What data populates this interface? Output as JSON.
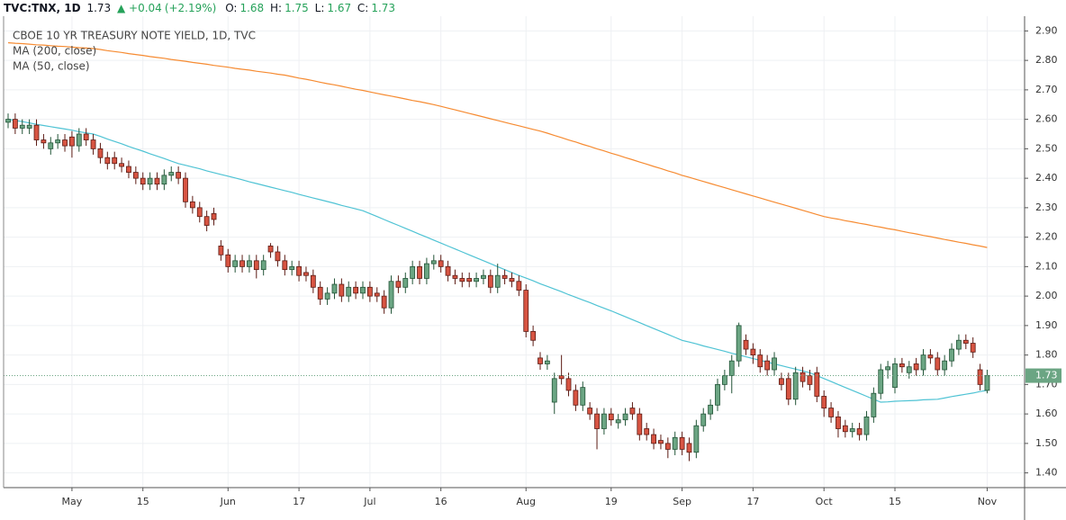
{
  "header": {
    "symbol": "TVC:TNX, 1D",
    "change": "+0.04",
    "change_pct": "(+2.19%)",
    "o": "O:",
    "h": "H:",
    "l": "L:",
    "c": "C:"
  },
  "chart_data": {
    "type": "candlestick",
    "title": "CBOE 10 YR TREASURY NOTE YIELD, 1D, TVC",
    "up_color": "#6ba583",
    "down_color": "#d75442",
    "up_border": "#225437",
    "down_border": "#5b1a13",
    "grid": true,
    "categories": [
      null,
      null,
      null,
      null,
      null,
      null,
      null,
      null,
      null,
      "May",
      null,
      null,
      null,
      null,
      null,
      null,
      null,
      null,
      null,
      "15",
      null,
      null,
      null,
      null,
      null,
      null,
      null,
      null,
      null,
      null,
      null,
      "Jun",
      null,
      null,
      null,
      null,
      null,
      null,
      null,
      null,
      null,
      "17",
      null,
      null,
      null,
      null,
      null,
      null,
      null,
      null,
      null,
      "Jul",
      null,
      null,
      null,
      null,
      null,
      null,
      null,
      null,
      null,
      "16",
      null,
      null,
      null,
      null,
      null,
      null,
      null,
      null,
      null,
      null,
      null,
      "Aug",
      null,
      null,
      null,
      null,
      null,
      null,
      null,
      null,
      null,
      null,
      null,
      "19",
      null,
      null,
      null,
      null,
      null,
      null,
      null,
      null,
      null,
      "Sep",
      null,
      null,
      null,
      null,
      null,
      null,
      null,
      null,
      null,
      "17",
      null,
      null,
      null,
      null,
      null,
      null,
      null,
      null,
      null,
      "Oct",
      null,
      null,
      null,
      null,
      null,
      null,
      null,
      null,
      null,
      "15",
      null,
      null,
      null,
      null,
      null,
      null,
      null,
      null,
      null,
      null,
      null,
      null,
      "Nov"
    ],
    "open": [
      2.59,
      2.6,
      2.57,
      2.57,
      2.58,
      2.53,
      2.5,
      2.52,
      2.53,
      2.54,
      2.51,
      2.55,
      2.53,
      2.5,
      2.47,
      2.47,
      2.45,
      2.44,
      2.42,
      2.4,
      2.38,
      2.4,
      2.38,
      2.41,
      2.42,
      2.4,
      2.32,
      2.3,
      2.27,
      2.28,
      2.17,
      2.14,
      2.1,
      2.12,
      2.1,
      2.12,
      2.09,
      2.17,
      2.15,
      2.12,
      2.09,
      2.1,
      2.08,
      2.07,
      2.03,
      1.99,
      2.01,
      2.04,
      2.0,
      2.03,
      2.01,
      2.03,
      2.01,
      2.0,
      1.96,
      2.05,
      2.03,
      2.06,
      2.1,
      2.06,
      2.11,
      2.12,
      2.1,
      2.07,
      2.06,
      2.06,
      2.05,
      2.06,
      2.07,
      2.03,
      2.07,
      2.06,
      2.05,
      2.02,
      1.88,
      1.79,
      1.77,
      1.64,
      1.73,
      1.72,
      1.68,
      1.63,
      1.62,
      1.6,
      1.55,
      1.6,
      1.57,
      1.58,
      1.62,
      1.6,
      1.55,
      1.53,
      1.51,
      1.5,
      1.48,
      1.52,
      1.5,
      1.47,
      1.56,
      1.6,
      1.63,
      1.7,
      1.73,
      1.78,
      1.85,
      1.82,
      1.8,
      1.78,
      1.75,
      1.72,
      1.72,
      1.65,
      1.74,
      1.73,
      1.74,
      1.66,
      1.62,
      1.59,
      1.56,
      1.54,
      1.55,
      1.53,
      1.59,
      1.67,
      1.75,
      1.69,
      1.77,
      1.74,
      1.77,
      1.75,
      1.8,
      1.79,
      1.75,
      1.78,
      1.82,
      1.85,
      1.84,
      1.75,
      1.68
    ],
    "high": [
      2.62,
      2.62,
      2.6,
      2.6,
      2.6,
      2.55,
      2.54,
      2.55,
      2.55,
      2.56,
      2.57,
      2.57,
      2.55,
      2.52,
      2.49,
      2.49,
      2.47,
      2.46,
      2.44,
      2.42,
      2.42,
      2.42,
      2.43,
      2.44,
      2.44,
      2.42,
      2.34,
      2.32,
      2.29,
      2.3,
      2.19,
      2.16,
      2.14,
      2.14,
      2.14,
      2.14,
      2.14,
      2.18,
      2.17,
      2.14,
      2.12,
      2.12,
      2.1,
      2.09,
      2.05,
      2.03,
      2.06,
      2.06,
      2.05,
      2.05,
      2.05,
      2.05,
      2.03,
      2.02,
      2.07,
      2.07,
      2.08,
      2.12,
      2.12,
      2.13,
      2.14,
      2.14,
      2.12,
      2.09,
      2.08,
      2.08,
      2.08,
      2.09,
      2.09,
      2.11,
      2.09,
      2.08,
      2.07,
      2.04,
      1.9,
      1.81,
      1.8,
      1.74,
      1.8,
      1.74,
      1.7,
      1.71,
      1.64,
      1.62,
      1.62,
      1.62,
      1.6,
      1.62,
      1.64,
      1.62,
      1.57,
      1.55,
      1.53,
      1.52,
      1.54,
      1.54,
      1.52,
      1.58,
      1.62,
      1.65,
      1.72,
      1.75,
      1.8,
      1.91,
      1.87,
      1.84,
      1.82,
      1.8,
      1.81,
      1.74,
      1.74,
      1.76,
      1.76,
      1.75,
      1.76,
      1.68,
      1.64,
      1.61,
      1.58,
      1.57,
      1.57,
      1.61,
      1.69,
      1.77,
      1.78,
      1.79,
      1.79,
      1.78,
      1.79,
      1.82,
      1.82,
      1.81,
      1.8,
      1.84,
      1.87,
      1.87,
      1.86,
      1.77,
      1.75
    ],
    "low": [
      2.57,
      2.55,
      2.55,
      2.55,
      2.51,
      2.5,
      2.48,
      2.5,
      2.49,
      2.47,
      2.49,
      2.51,
      2.48,
      2.45,
      2.43,
      2.43,
      2.42,
      2.4,
      2.38,
      2.36,
      2.36,
      2.36,
      2.36,
      2.39,
      2.38,
      2.3,
      2.28,
      2.25,
      2.22,
      2.24,
      2.12,
      2.08,
      2.08,
      2.08,
      2.08,
      2.06,
      2.07,
      2.13,
      2.1,
      2.07,
      2.07,
      2.05,
      2.05,
      2.01,
      1.97,
      1.97,
      1.99,
      1.98,
      1.98,
      1.99,
      1.99,
      1.98,
      1.98,
      1.94,
      1.94,
      2.01,
      2.01,
      2.04,
      2.04,
      2.04,
      2.09,
      2.08,
      2.05,
      2.04,
      2.03,
      2.03,
      2.03,
      2.04,
      2.01,
      2.01,
      2.04,
      2.03,
      2.0,
      1.86,
      1.83,
      1.75,
      1.75,
      1.6,
      1.7,
      1.66,
      1.61,
      1.61,
      1.58,
      1.48,
      1.53,
      1.56,
      1.55,
      1.56,
      1.58,
      1.51,
      1.51,
      1.48,
      1.48,
      1.45,
      1.46,
      1.46,
      1.44,
      1.45,
      1.54,
      1.58,
      1.61,
      1.68,
      1.67,
      1.76,
      1.8,
      1.77,
      1.74,
      1.73,
      1.73,
      1.68,
      1.63,
      1.63,
      1.69,
      1.68,
      1.64,
      1.59,
      1.57,
      1.52,
      1.52,
      1.52,
      1.51,
      1.51,
      1.57,
      1.65,
      1.72,
      1.67,
      1.74,
      1.72,
      1.73,
      1.73,
      1.77,
      1.73,
      1.73,
      1.76,
      1.8,
      1.82,
      1.79,
      1.68,
      1.67
    ],
    "close": [
      2.6,
      2.57,
      2.58,
      2.58,
      2.53,
      2.52,
      2.52,
      2.53,
      2.51,
      2.51,
      2.55,
      2.53,
      2.5,
      2.47,
      2.45,
      2.45,
      2.44,
      2.42,
      2.4,
      2.38,
      2.4,
      2.38,
      2.41,
      2.42,
      2.4,
      2.32,
      2.3,
      2.27,
      2.24,
      2.26,
      2.14,
      2.1,
      2.12,
      2.1,
      2.12,
      2.09,
      2.12,
      2.15,
      2.12,
      2.09,
      2.1,
      2.07,
      2.07,
      2.03,
      1.99,
      2.01,
      2.04,
      2.0,
      2.03,
      2.01,
      2.03,
      2.0,
      2.0,
      1.96,
      2.05,
      2.03,
      2.06,
      2.1,
      2.06,
      2.11,
      2.12,
      2.1,
      2.07,
      2.06,
      2.05,
      2.05,
      2.06,
      2.07,
      2.03,
      2.07,
      2.06,
      2.05,
      2.02,
      1.88,
      1.85,
      1.77,
      1.78,
      1.72,
      1.72,
      1.68,
      1.63,
      1.69,
      1.6,
      1.55,
      1.6,
      1.58,
      1.58,
      1.6,
      1.6,
      1.53,
      1.53,
      1.5,
      1.5,
      1.48,
      1.52,
      1.48,
      1.47,
      1.56,
      1.6,
      1.63,
      1.7,
      1.73,
      1.78,
      1.9,
      1.82,
      1.8,
      1.76,
      1.75,
      1.79,
      1.7,
      1.65,
      1.74,
      1.71,
      1.7,
      1.66,
      1.62,
      1.59,
      1.55,
      1.54,
      1.55,
      1.53,
      1.59,
      1.67,
      1.75,
      1.76,
      1.77,
      1.76,
      1.76,
      1.75,
      1.8,
      1.79,
      1.75,
      1.78,
      1.82,
      1.85,
      1.84,
      1.81,
      1.7,
      1.73
    ],
    "series": [
      {
        "name": "MA (200, close)",
        "color": "#f68b32",
        "values": [
          2.86,
          2.858,
          2.857,
          2.855,
          2.853,
          2.852,
          2.85,
          2.848,
          2.847,
          2.845,
          2.843,
          2.842,
          2.84,
          2.837,
          2.833,
          2.83,
          2.827,
          2.823,
          2.82,
          2.817,
          2.813,
          2.81,
          2.807,
          2.803,
          2.8,
          2.797,
          2.793,
          2.79,
          2.787,
          2.783,
          2.78,
          2.777,
          2.773,
          2.77,
          2.767,
          2.763,
          2.76,
          2.757,
          2.753,
          2.75,
          2.745,
          2.74,
          2.736,
          2.731,
          2.726,
          2.721,
          2.717,
          2.712,
          2.707,
          2.702,
          2.698,
          2.693,
          2.688,
          2.683,
          2.679,
          2.674,
          2.669,
          2.664,
          2.66,
          2.655,
          2.65,
          2.644,
          2.638,
          2.632,
          2.626,
          2.62,
          2.614,
          2.608,
          2.602,
          2.596,
          2.59,
          2.584,
          2.578,
          2.572,
          2.566,
          2.56,
          2.553,
          2.545,
          2.538,
          2.53,
          2.523,
          2.515,
          2.508,
          2.5,
          2.493,
          2.485,
          2.478,
          2.47,
          2.463,
          2.455,
          2.448,
          2.44,
          2.433,
          2.425,
          2.418,
          2.41,
          2.403,
          2.396,
          2.389,
          2.382,
          2.375,
          2.368,
          2.361,
          2.354,
          2.347,
          2.34,
          2.333,
          2.326,
          2.319,
          2.312,
          2.305,
          2.298,
          2.291,
          2.284,
          2.277,
          2.27,
          2.265,
          2.261,
          2.256,
          2.252,
          2.247,
          2.243,
          2.238,
          2.234,
          2.229,
          2.225,
          2.22,
          2.215,
          2.211,
          2.206,
          2.202,
          2.197,
          2.192,
          2.188,
          2.183,
          2.179,
          2.174,
          2.17,
          2.165
        ]
      },
      {
        "name": "MA (50, close)",
        "color": "#4fc3d4",
        "values": [
          2.6,
          2.596,
          2.592,
          2.588,
          2.583,
          2.579,
          2.575,
          2.571,
          2.567,
          2.563,
          2.558,
          2.554,
          2.55,
          2.542,
          2.533,
          2.525,
          2.517,
          2.508,
          2.5,
          2.492,
          2.483,
          2.475,
          2.467,
          2.458,
          2.45,
          2.444,
          2.438,
          2.432,
          2.425,
          2.419,
          2.413,
          2.407,
          2.401,
          2.395,
          2.388,
          2.382,
          2.376,
          2.37,
          2.364,
          2.358,
          2.352,
          2.345,
          2.339,
          2.333,
          2.327,
          2.321,
          2.315,
          2.308,
          2.302,
          2.296,
          2.29,
          2.28,
          2.27,
          2.26,
          2.25,
          2.24,
          2.23,
          2.22,
          2.21,
          2.2,
          2.19,
          2.18,
          2.17,
          2.16,
          2.15,
          2.14,
          2.13,
          2.12,
          2.11,
          2.1,
          2.09,
          2.08,
          2.07,
          2.061,
          2.052,
          2.042,
          2.033,
          2.024,
          2.015,
          2.005,
          1.996,
          1.987,
          1.978,
          1.968,
          1.959,
          1.95,
          1.94,
          1.93,
          1.92,
          1.91,
          1.9,
          1.89,
          1.88,
          1.87,
          1.86,
          1.85,
          1.844,
          1.838,
          1.831,
          1.825,
          1.819,
          1.813,
          1.806,
          1.8,
          1.794,
          1.788,
          1.782,
          1.776,
          1.77,
          1.764,
          1.758,
          1.752,
          1.746,
          1.74,
          1.73,
          1.72,
          1.71,
          1.7,
          1.69,
          1.68,
          1.67,
          1.66,
          1.65,
          1.64,
          1.641,
          1.643,
          1.644,
          1.645,
          1.646,
          1.648,
          1.649,
          1.65,
          1.654,
          1.659,
          1.663,
          1.667,
          1.671,
          1.676,
          1.68
        ]
      }
    ],
    "ylim": [
      1.35,
      2.95
    ],
    "yticks": [
      {
        "value": 1.4,
        "label": "1.40"
      },
      {
        "value": 1.5,
        "label": "1.50"
      },
      {
        "value": 1.6,
        "label": "1.60"
      },
      {
        "value": 1.7,
        "label": "1.70"
      },
      {
        "value": 1.8,
        "label": "1.80"
      },
      {
        "value": 1.9,
        "label": "1.90"
      },
      {
        "value": 2.0,
        "label": "2.00"
      },
      {
        "value": 2.1,
        "label": "2.10"
      },
      {
        "value": 2.2,
        "label": "2.20"
      },
      {
        "value": 2.3,
        "label": "2.30"
      },
      {
        "value": 2.4,
        "label": "2.40"
      },
      {
        "value": 2.5,
        "label": "2.50"
      },
      {
        "value": 2.6,
        "label": "2.60"
      },
      {
        "value": 2.7,
        "label": "2.70"
      },
      {
        "value": 2.8,
        "label": "2.80"
      },
      {
        "value": 2.9,
        "label": "2.90"
      }
    ]
  }
}
